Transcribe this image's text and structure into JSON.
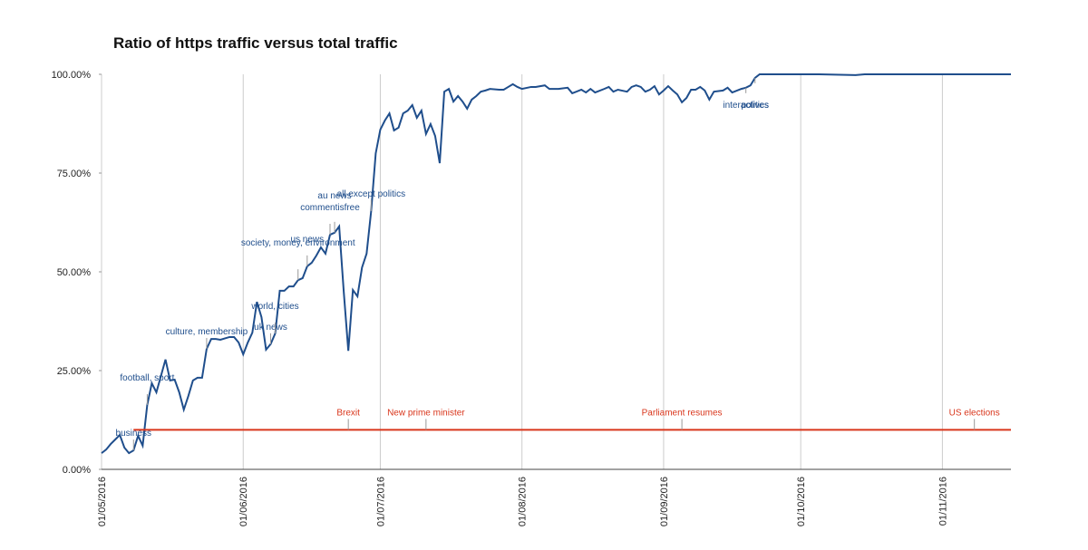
{
  "chart_data": {
    "type": "line",
    "title": "Ratio of https traffic versus total traffic",
    "xlim": [
      "01/05/2016",
      "16/11/2016"
    ],
    "xticks": [
      "01/05/2016",
      "01/06/2016",
      "01/07/2016",
      "01/08/2016",
      "01/09/2016",
      "01/10/2016",
      "01/11/2016"
    ],
    "ylim": [
      0,
      100
    ],
    "yticks": [
      {
        "value": 0,
        "label": "0.00%"
      },
      {
        "value": 25,
        "label": "25.00%"
      },
      {
        "value": 50,
        "label": "50.00%"
      },
      {
        "value": 75,
        "label": "75.00%"
      },
      {
        "value": 100,
        "label": "100.00%"
      }
    ],
    "xgrid": true,
    "series": [
      {
        "color": "#1f4e8c",
        "x": [
          "01/05/2016",
          "02/05/2016",
          "03/05/2016",
          "05/05/2016",
          "06/05/2016",
          "07/05/2016",
          "08/05/2016",
          "09/05/2016",
          "10/05/2016",
          "11/05/2016",
          "12/05/2016",
          "13/05/2016",
          "15/05/2016",
          "16/05/2016",
          "17/05/2016",
          "18/05/2016",
          "19/05/2016",
          "20/05/2016",
          "21/05/2016",
          "22/05/2016",
          "23/05/2016",
          "24/05/2016",
          "25/05/2016",
          "26/05/2016",
          "27/05/2016",
          "29/05/2016",
          "30/05/2016",
          "31/05/2016",
          "01/06/2016",
          "02/06/2016",
          "03/06/2016",
          "04/06/2016",
          "05/06/2016",
          "06/06/2016",
          "07/06/2016",
          "08/06/2016",
          "09/06/2016",
          "10/06/2016",
          "11/06/2016",
          "12/06/2016",
          "13/06/2016",
          "14/06/2016",
          "15/06/2016",
          "16/06/2016",
          "17/06/2016",
          "18/06/2016",
          "19/06/2016",
          "20/06/2016",
          "21/06/2016",
          "22/06/2016",
          "23/06/2016",
          "24/06/2016",
          "25/06/2016",
          "26/06/2016",
          "27/06/2016",
          "28/06/2016",
          "29/06/2016",
          "30/06/2016",
          "01/07/2016",
          "02/07/2016",
          "03/07/2016",
          "04/07/2016",
          "05/07/2016",
          "06/07/2016",
          "07/07/2016",
          "08/07/2016",
          "09/07/2016",
          "10/07/2016",
          "11/07/2016",
          "12/07/2016",
          "13/07/2016",
          "14/07/2016",
          "15/07/2016",
          "16/07/2016",
          "17/07/2016",
          "18/07/2016",
          "19/07/2016",
          "20/07/2016",
          "21/07/2016",
          "22/07/2016",
          "23/07/2016",
          "24/07/2016",
          "25/07/2016",
          "27/07/2016",
          "28/07/2016",
          "29/07/2016",
          "30/07/2016",
          "31/07/2016",
          "01/08/2016",
          "03/08/2016",
          "04/08/2016",
          "06/08/2016",
          "07/08/2016",
          "09/08/2016",
          "11/08/2016",
          "12/08/2016",
          "14/08/2016",
          "15/08/2016",
          "16/08/2016",
          "17/08/2016",
          "19/08/2016",
          "20/08/2016",
          "21/08/2016",
          "22/08/2016",
          "24/08/2016",
          "25/08/2016",
          "26/08/2016",
          "27/08/2016",
          "28/08/2016",
          "29/08/2016",
          "30/08/2016",
          "31/08/2016",
          "01/09/2016",
          "02/09/2016",
          "03/09/2016",
          "04/09/2016",
          "05/09/2016",
          "06/09/2016",
          "07/09/2016",
          "08/09/2016",
          "09/09/2016",
          "10/09/2016",
          "11/09/2016",
          "12/09/2016",
          "14/09/2016",
          "15/09/2016",
          "16/09/2016",
          "18/09/2016",
          "19/09/2016",
          "20/09/2016",
          "21/09/2016",
          "22/09/2016",
          "05/10/2016",
          "13/10/2016",
          "15/10/2016",
          "16/11/2016"
        ],
        "values": [
          4.1,
          5.0,
          6.4,
          8.7,
          5.5,
          4.1,
          4.8,
          8.5,
          6.0,
          16.3,
          21.8,
          19.5,
          27.8,
          22.5,
          22.7,
          19.5,
          15.1,
          18.6,
          22.5,
          23.2,
          23.2,
          30.5,
          33.0,
          33.0,
          32.8,
          33.5,
          33.5,
          32.1,
          29.1,
          32.1,
          34.6,
          42.4,
          38.5,
          30.3,
          31.7,
          34.4,
          45.2,
          45.2,
          46.3,
          46.3,
          47.9,
          48.4,
          51.4,
          52.3,
          54.1,
          56.2,
          54.6,
          59.4,
          59.9,
          61.5,
          45.0,
          30.0,
          45.4,
          43.8,
          51.1,
          54.6,
          65.4,
          80.0,
          86.0,
          88.3,
          90.1,
          85.8,
          86.5,
          90.1,
          90.8,
          92.2,
          89.0,
          90.8,
          84.9,
          87.4,
          84.4,
          77.5,
          95.6,
          96.3,
          93.1,
          94.5,
          93.1,
          91.3,
          93.6,
          94.5,
          95.6,
          95.9,
          96.3,
          96.1,
          96.1,
          96.8,
          97.5,
          96.8,
          96.3,
          96.8,
          96.8,
          97.2,
          96.3,
          96.3,
          96.6,
          95.2,
          96.1,
          95.4,
          96.3,
          95.4,
          96.3,
          96.8,
          95.6,
          96.1,
          95.6,
          96.8,
          97.2,
          96.8,
          95.6,
          96.1,
          97.0,
          94.9,
          95.9,
          97.0,
          95.9,
          94.9,
          92.9,
          94.0,
          96.1,
          96.1,
          96.8,
          95.9,
          93.6,
          95.6,
          95.9,
          96.6,
          95.4,
          96.3,
          96.6,
          97.2,
          99.1,
          100,
          100,
          99.8,
          100,
          100
        ],
        "annotations": [
          {
            "x": "08/05/2016",
            "text": "business"
          },
          {
            "x": "11/05/2016",
            "text": "football, sport"
          },
          {
            "x": "24/05/2016",
            "text": "culture, membership"
          },
          {
            "x": "07/06/2016",
            "text": "uk news"
          },
          {
            "x": "08/06/2016",
            "text": "world, cities"
          },
          {
            "x": "13/06/2016",
            "text": "society, money, environment"
          },
          {
            "x": "15/06/2016",
            "text": "us news"
          },
          {
            "x": "20/06/2016",
            "text": "commentisfree"
          },
          {
            "x": "21/06/2016",
            "text": "au news"
          },
          {
            "x": "29/06/2016",
            "text": "all except politics"
          },
          {
            "x": "19/09/2016",
            "text": "interactives"
          },
          {
            "x": "21/09/2016",
            "text": "politics"
          }
        ]
      },
      {
        "color": "#d9361c",
        "x": [
          "08/05/2016",
          "16/11/2016"
        ],
        "values": [
          10,
          10
        ],
        "annotations": [
          {
            "x": "24/06/2016",
            "text": "Brexit"
          },
          {
            "x": "11/07/2016",
            "text": "New prime minister"
          },
          {
            "x": "05/09/2016",
            "text": "Parliament resumes"
          },
          {
            "x": "08/11/2016",
            "text": "US elections"
          }
        ]
      }
    ]
  }
}
